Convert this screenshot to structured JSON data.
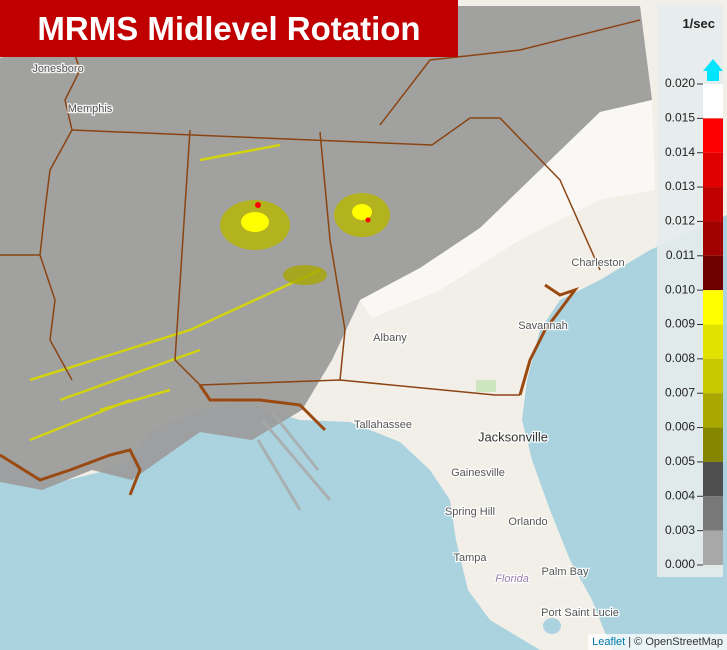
{
  "header": {
    "title": "MRMS Midlevel Rotation"
  },
  "map": {
    "places": [
      {
        "label": "Jonesboro"
      },
      {
        "label": "Memphis"
      },
      {
        "label": "Charleston"
      },
      {
        "label": "Savannah"
      },
      {
        "label": "Albany"
      },
      {
        "label": "Tallahassee"
      },
      {
        "label": "Jacksonville"
      },
      {
        "label": "Gainesville"
      },
      {
        "label": "Spring Hill"
      },
      {
        "label": "Orlando"
      },
      {
        "label": "Tampa"
      },
      {
        "label": "Florida"
      },
      {
        "label": "Palm Bay"
      },
      {
        "label": "Port Saint Lucie"
      }
    ],
    "attribution": {
      "link": "Leaflet",
      "separator": "|",
      "text": "© OpenStreetMap"
    }
  },
  "legend": {
    "unit": "1/sec",
    "ticks": [
      {
        "value": 0.02,
        "label": "0.020"
      },
      {
        "value": 0.015,
        "label": "0.015"
      },
      {
        "value": 0.014,
        "label": "0.014"
      },
      {
        "value": 0.013,
        "label": "0.013"
      },
      {
        "value": 0.012,
        "label": "0.012"
      },
      {
        "value": 0.011,
        "label": "0.011"
      },
      {
        "value": 0.01,
        "label": "0.010"
      },
      {
        "value": 0.009,
        "label": "0.009"
      },
      {
        "value": 0.008,
        "label": "0.008"
      },
      {
        "value": 0.007,
        "label": "0.007"
      },
      {
        "value": 0.006,
        "label": "0.006"
      },
      {
        "value": 0.005,
        "label": "0.005"
      },
      {
        "value": 0.004,
        "label": "0.004"
      },
      {
        "value": 0.003,
        "label": "0.003"
      },
      {
        "value": 0,
        "label": "0.000"
      }
    ],
    "colors": [
      "#ffffff",
      "#ff0000",
      "#e00000",
      "#c00000",
      "#a00000",
      "#6e0000",
      "#ffff00",
      "#e2e200",
      "#c8c800",
      "#a8a800",
      "#868600",
      "#4e4e4e",
      "#787878",
      "#a8a8a8"
    ]
  }
}
